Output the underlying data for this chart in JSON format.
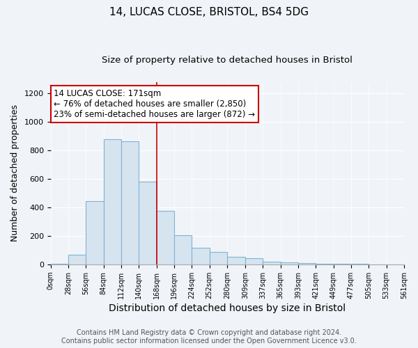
{
  "title1": "14, LUCAS CLOSE, BRISTOL, BS4 5DG",
  "title2": "Size of property relative to detached houses in Bristol",
  "xlabel": "Distribution of detached houses by size in Bristol",
  "ylabel": "Number of detached properties",
  "bin_edges": [
    0,
    28,
    56,
    84,
    112,
    140,
    168,
    196,
    224,
    252,
    280,
    309,
    337,
    365,
    393,
    421,
    449,
    477,
    505,
    533,
    561
  ],
  "bar_heights": [
    5,
    70,
    445,
    880,
    865,
    580,
    375,
    205,
    115,
    85,
    55,
    45,
    18,
    14,
    10,
    2,
    2,
    2,
    1,
    1
  ],
  "bar_color": "#d6e4f0",
  "bar_edge_color": "#7fb3d3",
  "vline_x": 168,
  "vline_color": "#cc0000",
  "annotation_text": "14 LUCAS CLOSE: 171sqm\n← 76% of detached houses are smaller (2,850)\n23% of semi-detached houses are larger (872) →",
  "annotation_box_color": "#ffffff",
  "annotation_box_edge_color": "#cc0000",
  "annotation_fontsize": 8.5,
  "ylim": [
    0,
    1280
  ],
  "yticks": [
    0,
    200,
    400,
    600,
    800,
    1000,
    1200
  ],
  "footer1": "Contains HM Land Registry data © Crown copyright and database right 2024.",
  "footer2": "Contains public sector information licensed under the Open Government Licence v3.0.",
  "title_fontsize": 11,
  "subtitle_fontsize": 9.5,
  "xlabel_fontsize": 10,
  "ylabel_fontsize": 9,
  "footer_fontsize": 7,
  "bg_color": "#f0f4f8"
}
